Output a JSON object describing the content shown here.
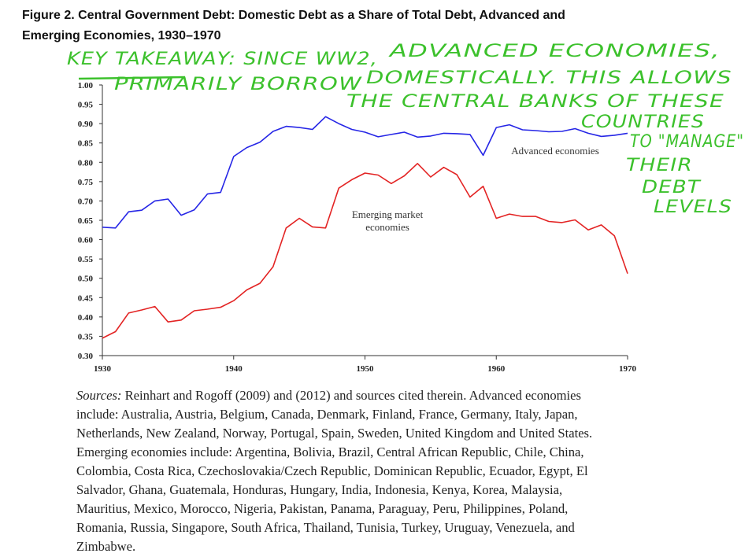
{
  "chart_data": {
    "type": "line",
    "title_lines": [
      "Figure 2. Central Government Debt: Domestic Debt as a Share of Total Debt, Advanced and",
      "Emerging Economies, 1930–1970"
    ],
    "x": [
      1930,
      1931,
      1932,
      1933,
      1934,
      1935,
      1936,
      1937,
      1938,
      1939,
      1940,
      1941,
      1942,
      1943,
      1944,
      1945,
      1946,
      1947,
      1948,
      1949,
      1950,
      1951,
      1952,
      1953,
      1954,
      1955,
      1956,
      1957,
      1958,
      1959,
      1960,
      1961,
      1962,
      1963,
      1964,
      1965,
      1966,
      1967,
      1968,
      1969,
      1970
    ],
    "series": [
      {
        "name": "Advanced economies",
        "color": "#2626e6",
        "values": [
          0.632,
          0.63,
          0.672,
          0.676,
          0.7,
          0.705,
          0.663,
          0.677,
          0.718,
          0.722,
          0.815,
          0.838,
          0.852,
          0.88,
          0.893,
          0.89,
          0.885,
          0.918,
          0.9,
          0.885,
          0.878,
          0.866,
          0.872,
          0.878,
          0.865,
          0.868,
          0.875,
          0.874,
          0.872,
          0.818,
          0.89,
          0.897,
          0.884,
          0.882,
          0.879,
          0.88,
          0.887,
          0.875,
          0.867,
          0.87,
          0.875
        ]
      },
      {
        "name": "Emerging market economies",
        "color": "#e32424",
        "values": [
          0.345,
          0.362,
          0.41,
          0.418,
          0.427,
          0.387,
          0.392,
          0.416,
          0.42,
          0.425,
          0.442,
          0.47,
          0.487,
          0.53,
          0.63,
          0.655,
          0.633,
          0.63,
          0.733,
          0.755,
          0.772,
          0.767,
          0.745,
          0.765,
          0.797,
          0.762,
          0.787,
          0.768,
          0.71,
          0.738,
          0.655,
          0.666,
          0.66,
          0.66,
          0.647,
          0.644,
          0.651,
          0.625,
          0.638,
          0.61,
          0.512
        ]
      }
    ],
    "series_label_lines": [
      [
        "Advanced economies"
      ],
      [
        "Emerging market",
        "economies"
      ]
    ],
    "xlim": [
      1930,
      1970
    ],
    "xticks": [
      1930,
      1940,
      1950,
      1960,
      1970
    ],
    "ylim": [
      0.3,
      1.0
    ],
    "yticks": [
      {
        "value": 0.3,
        "label": "0.30"
      },
      {
        "value": 0.35,
        "label": "0.35"
      },
      {
        "value": 0.4,
        "label": "0.40"
      },
      {
        "value": 0.45,
        "label": "0.45"
      },
      {
        "value": 0.5,
        "label": "0.50"
      },
      {
        "value": 0.55,
        "label": "0.55"
      },
      {
        "value": 0.6,
        "label": "0.60"
      },
      {
        "value": 0.65,
        "label": "0.65"
      },
      {
        "value": 0.7,
        "label": "0.70"
      },
      {
        "value": 0.75,
        "label": "0.75"
      },
      {
        "value": 0.8,
        "label": "0.80"
      },
      {
        "value": 0.85,
        "label": "0.85"
      },
      {
        "value": 0.9,
        "label": "0.90"
      },
      {
        "value": 0.95,
        "label": "0.95"
      },
      {
        "value": 1.0,
        "label": "1.00"
      }
    ],
    "grid": false,
    "handwritten_note": [
      "KEY TAKEAWAY: SINCE WW2,",
      "ADVANCED ECONOMIES,",
      "PRIMARILY BORROW",
      "DOMESTICALLY. THIS ALLOWS",
      "THE CENTRAL BANKS OF THESE",
      "COUNTRIES",
      "TO \"MANAGE\"",
      "THEIR",
      "DEBT",
      "LEVELS"
    ],
    "sources_label": "Sources:",
    "sources_lines": [
      "Reinhart and Rogoff (2009) and (2012) and sources cited therein. Advanced economies",
      "include: Australia, Austria, Belgium, Canada, Denmark, Finland, France, Germany, Italy, Japan,",
      "Netherlands, New Zealand, Norway, Portugal, Spain, Sweden, United Kingdom and United States.",
      "Emerging economies include: Argentina, Bolivia, Brazil, Central African Republic, Chile, China,",
      "Colombia, Costa Rica, Czechoslovakia/Czech Republic, Dominican Republic, Ecuador, Egypt, El",
      "Salvador, Ghana, Guatemala, Honduras, Hungary, India, Indonesia, Kenya, Korea, Malaysia,",
      "Mauritius, Mexico, Morocco, Nigeria, Pakistan, Panama, Paraguay, Peru, Philippines, Poland,",
      "Romania, Russia, Singapore, South Africa, Thailand, Tunisia, Turkey, Uruguay, Venezuela, and",
      "Zimbabwe."
    ]
  }
}
